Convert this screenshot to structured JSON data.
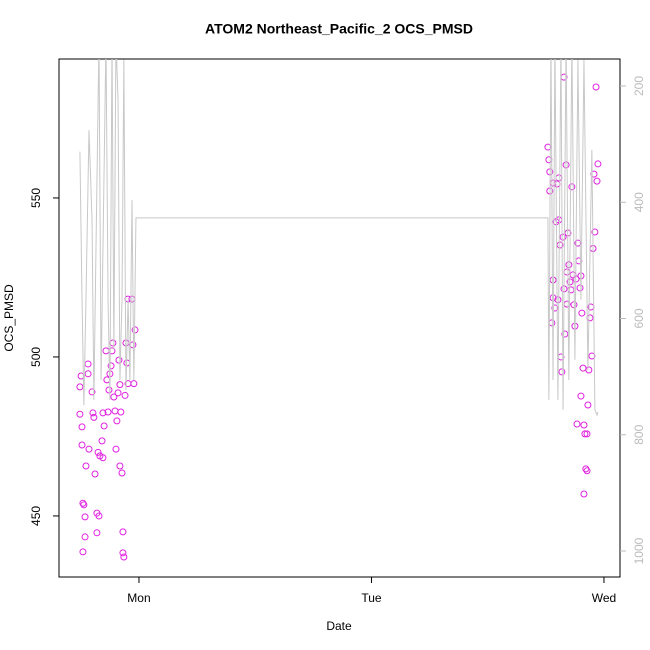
{
  "chart_data": {
    "type": "scatter",
    "title": "ATOM2 Northeast_Pacific_2 OCS_PMSD",
    "x_label": "Date",
    "y_label": "OCS_PMSD",
    "xlim": [
      0.656,
      3.069
    ],
    "xticks": [
      {
        "value": 1,
        "label": "Mon"
      },
      {
        "value": 2,
        "label": "Tue"
      },
      {
        "value": 3,
        "label": "Wed"
      }
    ],
    "ylim": [
      430.8,
      593.7
    ],
    "yticks": [
      450,
      500,
      550
    ],
    "y2lim": [
      1044.7,
      153.6
    ],
    "y2ticks": [
      200,
      400,
      600,
      800,
      1000
    ],
    "series": [
      {
        "type": "scatter",
        "color": "#e020e0",
        "x": [
          0.746,
          0.751,
          0.746,
          0.755,
          0.755,
          0.759,
          0.763,
          0.768,
          0.768,
          0.759,
          0.772,
          0.781,
          0.781,
          0.785,
          0.798,
          0.802,
          0.806,
          0.811,
          0.819,
          0.819,
          0.824,
          0.828,
          0.832,
          0.841,
          0.845,
          0.845,
          0.85,
          0.858,
          0.862,
          0.867,
          0.871,
          0.875,
          0.88,
          0.884,
          0.888,
          0.892,
          0.897,
          0.901,
          0.905,
          0.91,
          0.914,
          0.918,
          0.918,
          0.922,
          0.927,
          0.931,
          0.931,
          0.935,
          0.94,
          0.944,
          0.948,
          0.953,
          0.953,
          0.97,
          0.974,
          0.983,
          0.978,
          2.759,
          2.763,
          2.767,
          2.767,
          2.781,
          2.781,
          2.781,
          2.776,
          2.789,
          2.794,
          2.798,
          2.802,
          2.806,
          2.806,
          2.811,
          2.815,
          2.819,
          2.824,
          2.828,
          2.828,
          2.832,
          2.837,
          2.841,
          2.841,
          2.845,
          2.849,
          2.854,
          2.858,
          2.862,
          2.867,
          2.871,
          2.875,
          2.88,
          2.884,
          2.888,
          2.892,
          2.897,
          2.901,
          2.905,
          2.91,
          2.914,
          2.918,
          2.922,
          2.927,
          2.931,
          2.935,
          2.94,
          2.944,
          2.948,
          2.953,
          2.957,
          2.961,
          2.966,
          2.97,
          2.974,
          2.901,
          2.914,
          2.927
        ],
        "values": [
          490.6,
          494,
          482,
          478,
          472.3,
          454,
          453.5,
          449.7,
          443.4,
          438.7,
          465.7,
          497.8,
          494.7,
          471,
          489,
          482.4,
          481,
          463.2,
          450.9,
          444.7,
          470,
          450,
          468.9,
          473.6,
          468.3,
          482.4,
          478.3,
          501.9,
          492.8,
          482.7,
          489.6,
          494.7,
          497.2,
          501.9,
          504.4,
          487.4,
          483,
          471,
          479.9,
          488.7,
          499,
          491.3,
          465.7,
          482.7,
          463.5,
          445,
          438.4,
          437.1,
          487.9,
          504.4,
          498.1,
          491.6,
          518.2,
          518.2,
          503.8,
          508.5,
          491.6,
          566,
          562,
          558.2,
          552.2,
          554.7,
          524.2,
          518.6,
          510.7,
          515.4,
          542.5,
          554.4,
          518,
          543.1,
          556.3,
          535.2,
          500,
          495.3,
          537.7,
          588,
          521.4,
          507.2,
          560.4,
          526.7,
          516.6,
          539,
          529,
          523.6,
          521.1,
          553.5,
          525.8,
          516.4,
          509.7,
          524.5,
          478.9,
          535.8,
          530.2,
          521.7,
          525.5,
          513.8,
          496.5,
          478.6,
          475.8,
          464.8,
          475.8,
          484.9,
          495.9,
          512.3,
          515.7,
          500.3,
          534.1,
          557.5,
          539.3,
          584.9,
          555.3,
          560.7,
          487.7,
          456.9,
          464.2
        ]
      },
      {
        "type": "line",
        "color": "#c8c8c8",
        "axis": "y2",
        "x": [
          0.746,
          0.755,
          0.763,
          0.772,
          0.785,
          0.798,
          0.806,
          0.815,
          0.828,
          0.837,
          0.845,
          0.858,
          0.867,
          0.875,
          0.884,
          0.892,
          0.901,
          0.91,
          0.918,
          0.927,
          0.935,
          0.944,
          0.953,
          0.961,
          0.97,
          0.978,
          0.987,
          2.759,
          2.763,
          2.772,
          2.781,
          2.789,
          2.802,
          2.815,
          2.824,
          2.837,
          2.849,
          2.862,
          2.875,
          2.888,
          2.901,
          2.914,
          2.931,
          2.948,
          2.961,
          2.97,
          2.974
        ],
        "values": [
          313,
          568,
          749,
          568,
          276,
          430,
          740,
          482,
          121,
          706,
          482,
          121,
          568,
          740,
          121,
          654,
          121,
          224,
          706,
          568,
          155,
          723,
          568,
          706,
          396,
          706,
          427,
          427,
          740,
          121,
          706,
          121,
          740,
          121,
          757,
          121,
          706,
          121,
          671,
          155,
          568,
          155,
          689,
          310,
          757,
          766,
          761
        ]
      }
    ]
  }
}
